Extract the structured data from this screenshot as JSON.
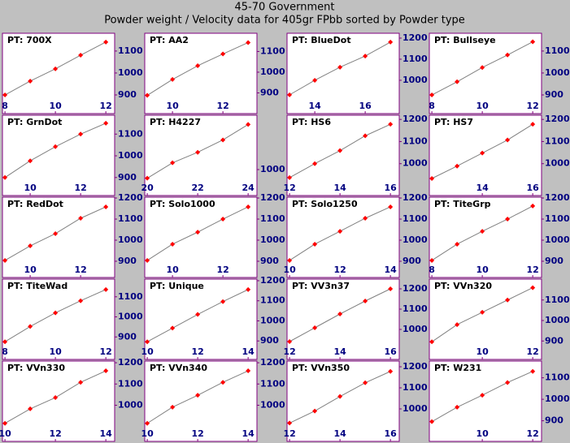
{
  "title": "45-70 Government",
  "subtitle": "Powder weight / Velocity data for 405gr FPbb sorted by Powder type",
  "chart_data": [
    {
      "type": "line",
      "title": "PT: 700X",
      "color": "#ff0000",
      "x": [
        8,
        9,
        10,
        11,
        12
      ],
      "values": [
        900,
        963,
        1019,
        1081,
        1141
      ],
      "xlim": [
        7.9,
        12.35
      ],
      "ylim": [
        815,
        1181
      ],
      "xticks": [
        8,
        10,
        12
      ],
      "yticks": [
        900,
        1000,
        1100
      ]
    },
    {
      "type": "line",
      "title": "PT: AA2",
      "color": "#ff0000",
      "x": [
        9,
        10,
        11,
        12,
        13
      ],
      "values": [
        888,
        965,
        1031,
        1088,
        1143
      ],
      "xlim": [
        8.9,
        13.35
      ],
      "ylim": [
        800,
        1188
      ],
      "xticks": [
        10,
        12
      ],
      "yticks": [
        900,
        1000,
        1100
      ]
    },
    {
      "type": "line",
      "title": "PT: BlueDot",
      "color": "#ff0000",
      "x": [
        13,
        14,
        15,
        16,
        17
      ],
      "values": [
        931,
        1000,
        1062,
        1115,
        1181
      ],
      "xlim": [
        12.9,
        17.35
      ],
      "ylim": [
        842,
        1223
      ],
      "xticks": [
        14,
        16
      ],
      "yticks": [
        1000,
        1100,
        1200
      ]
    },
    {
      "type": "line",
      "title": "PT: Bullseye",
      "color": "#ff0000",
      "x": [
        8,
        9,
        10,
        11,
        12
      ],
      "values": [
        900,
        960,
        1025,
        1082,
        1142
      ],
      "xlim": [
        7.9,
        12.35
      ],
      "ylim": [
        815,
        1181
      ],
      "xticks": [
        8,
        10,
        12
      ],
      "yticks": [
        900,
        1000,
        1100
      ]
    },
    {
      "type": "line",
      "title": "PT: GrnDot",
      "color": "#ff0000",
      "x": [
        9,
        10,
        11,
        12,
        13
      ],
      "values": [
        900,
        977,
        1042,
        1100,
        1150
      ],
      "xlim": [
        8.9,
        13.35
      ],
      "ylim": [
        817,
        1187
      ],
      "xticks": [
        10,
        12
      ],
      "yticks": [
        900,
        1000,
        1100
      ]
    },
    {
      "type": "line",
      "title": "PT: H4227",
      "color": "#ff0000",
      "x": [
        20,
        21,
        22,
        23,
        24
      ],
      "values": [
        986,
        1011,
        1028,
        1048,
        1073
      ],
      "xlim": [
        19.9,
        24.35
      ],
      "ylim": [
        958,
        1088
      ],
      "xticks": [
        20,
        22,
        24
      ],
      "yticks": [
        1000
      ]
    },
    {
      "type": "line",
      "title": "PT: HS6",
      "color": "#ff0000",
      "x": [
        12,
        13,
        14,
        15,
        16
      ],
      "values": [
        937,
        1000,
        1059,
        1126,
        1178
      ],
      "xlim": [
        11.9,
        16.35
      ],
      "ylim": [
        856,
        1219
      ],
      "xticks": [
        12,
        14,
        16
      ],
      "yticks": [
        1000,
        1100,
        1200
      ]
    },
    {
      "type": "line",
      "title": "PT: HS7",
      "color": "#ff0000",
      "x": [
        12,
        13,
        14,
        15,
        16
      ],
      "values": [
        933,
        989,
        1048,
        1107,
        1178
      ],
      "xlim": [
        11.9,
        16.35
      ],
      "ylim": [
        856,
        1219
      ],
      "xticks": [
        14,
        16
      ],
      "yticks": [
        1000,
        1100,
        1200
      ]
    },
    {
      "type": "line",
      "title": "PT: RedDot",
      "color": "#ff0000",
      "x": [
        9,
        10,
        11,
        12,
        13
      ],
      "values": [
        904,
        973,
        1031,
        1104,
        1158
      ],
      "xlim": [
        8.9,
        13.35
      ],
      "ylim": [
        823,
        1204
      ],
      "xticks": [
        10,
        12
      ],
      "yticks": [
        900,
        1000,
        1100,
        1200
      ]
    },
    {
      "type": "line",
      "title": "PT: Solo1000",
      "color": "#ff0000",
      "x": [
        9,
        10,
        11,
        12,
        13
      ],
      "values": [
        904,
        981,
        1038,
        1100,
        1158
      ],
      "xlim": [
        8.9,
        13.35
      ],
      "ylim": [
        823,
        1204
      ],
      "xticks": [
        10,
        12
      ],
      "yticks": [
        900,
        1000,
        1100,
        1200
      ]
    },
    {
      "type": "line",
      "title": "PT: Solo1250",
      "color": "#ff0000",
      "x": [
        10,
        11,
        12,
        13,
        14
      ],
      "values": [
        904,
        981,
        1042,
        1104,
        1158
      ],
      "xlim": [
        9.9,
        14.35
      ],
      "ylim": [
        823,
        1204
      ],
      "xticks": [
        10,
        12,
        14
      ],
      "yticks": [
        900,
        1000,
        1100,
        1200
      ]
    },
    {
      "type": "line",
      "title": "PT: TiteGrp",
      "color": "#ff0000",
      "x": [
        8,
        9,
        10,
        11,
        12
      ],
      "values": [
        904,
        981,
        1042,
        1100,
        1162
      ],
      "xlim": [
        7.9,
        12.35
      ],
      "ylim": [
        823,
        1204
      ],
      "xticks": [
        8,
        10,
        12
      ],
      "yticks": [
        900,
        1000,
        1100,
        1200
      ]
    },
    {
      "type": "line",
      "title": "PT: TiteWad",
      "color": "#ff0000",
      "x": [
        8,
        9,
        10,
        11,
        12
      ],
      "values": [
        876,
        952,
        1020,
        1080,
        1136
      ],
      "xlim": [
        7.9,
        12.35
      ],
      "ylim": [
        788,
        1188
      ],
      "xticks": [
        8,
        10,
        12
      ],
      "yticks": [
        900,
        1000,
        1100
      ]
    },
    {
      "type": "line",
      "title": "PT: Unique",
      "color": "#ff0000",
      "x": [
        10,
        11,
        12,
        13,
        14
      ],
      "values": [
        896,
        964,
        1032,
        1096,
        1156
      ],
      "xlim": [
        9.9,
        14.35
      ],
      "ylim": [
        808,
        1208
      ],
      "xticks": [
        10,
        12,
        14
      ],
      "yticks": [
        900,
        1000,
        1100,
        1200
      ]
    },
    {
      "type": "line",
      "title": "PT: VV3n37",
      "color": "#ff0000",
      "x": [
        12,
        13,
        14,
        15,
        16
      ],
      "values": [
        940,
        1008,
        1076,
        1140,
        1200
      ],
      "xlim": [
        11.9,
        16.35
      ],
      "ylim": [
        852,
        1248
      ],
      "xticks": [
        12,
        14,
        16
      ],
      "yticks": [
        1000,
        1100,
        1200
      ]
    },
    {
      "type": "line",
      "title": "PT: VVn320",
      "color": "#ff0000",
      "x": [
        8,
        9,
        10,
        11,
        12
      ],
      "values": [
        896,
        980,
        1040,
        1100,
        1160
      ],
      "xlim": [
        7.9,
        12.35
      ],
      "ylim": [
        810,
        1202
      ],
      "xticks": [
        10,
        12
      ],
      "yticks": [
        900,
        1000,
        1100
      ]
    },
    {
      "type": "line",
      "title": "PT: VVn330",
      "color": "#ff0000",
      "x": [
        10,
        11,
        12,
        13,
        14
      ],
      "values": [
        915,
        983,
        1036,
        1108,
        1162
      ],
      "xlim": [
        9.9,
        14.35
      ],
      "ylim": [
        830,
        1208
      ],
      "xticks": [
        10,
        12,
        14
      ],
      "yticks": [
        1000,
        1100,
        1200
      ]
    },
    {
      "type": "line",
      "title": "PT: VVn340",
      "color": "#ff0000",
      "x": [
        10,
        11,
        12,
        13,
        14
      ],
      "values": [
        915,
        991,
        1047,
        1108,
        1162
      ],
      "xlim": [
        9.9,
        14.35
      ],
      "ylim": [
        830,
        1208
      ],
      "xticks": [
        10,
        12,
        14
      ],
      "yticks": [
        1000,
        1100,
        1200
      ]
    },
    {
      "type": "line",
      "title": "PT: VVn350",
      "color": "#ff0000",
      "x": [
        12,
        13,
        14,
        15,
        16
      ],
      "values": [
        933,
        990,
        1059,
        1124,
        1178
      ],
      "xlim": [
        11.9,
        16.35
      ],
      "ylim": [
        846,
        1227
      ],
      "xticks": [
        12,
        14,
        16
      ],
      "yticks": [
        1000,
        1100,
        1200
      ]
    },
    {
      "type": "line",
      "title": "PT: W231",
      "color": "#ff0000",
      "x": [
        8,
        9,
        10,
        11,
        12
      ],
      "values": [
        896,
        963,
        1019,
        1078,
        1130
      ],
      "xlim": [
        7.9,
        12.35
      ],
      "ylim": [
        804,
        1178
      ],
      "xticks": [
        10,
        12
      ],
      "yticks": [
        900,
        1000,
        1100
      ]
    }
  ]
}
